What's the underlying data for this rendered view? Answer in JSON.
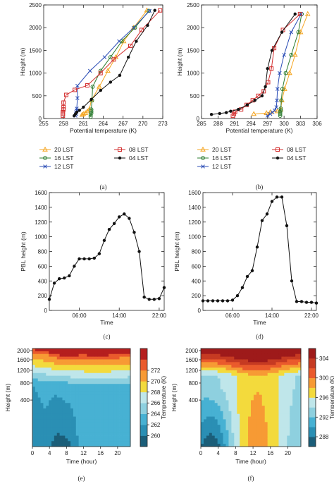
{
  "chart_data": [
    {
      "panel": "a",
      "type": "line",
      "xlabel": "Potential temperature (K)",
      "ylabel": "Height (m)",
      "xlim": [
        255,
        273
      ],
      "ylim": [
        0,
        2500
      ],
      "xticks": [
        "255",
        "258",
        "261",
        "264",
        "267",
        "270",
        "273"
      ],
      "yticks": [
        "0",
        "500",
        "1000",
        "1500",
        "2000",
        "2500"
      ],
      "panel_label": "(a)",
      "grid": false,
      "legend_position": "below",
      "series": [
        {
          "name": "20 LST",
          "color": "#f5a623",
          "marker": "triangle",
          "x": [
            260.8,
            261.0,
            261.3,
            261.6,
            261.9,
            262.2,
            263.4,
            264.7,
            265.9,
            267.1,
            268.6,
            270.6
          ],
          "y": [
            80,
            100,
            120,
            160,
            200,
            400,
            700,
            1050,
            1350,
            1700,
            2000,
            2380
          ]
        },
        {
          "name": "16 LST",
          "color": "#2e7d32",
          "marker": "circle",
          "x": [
            262.1,
            262.1,
            262.2,
            262.2,
            262.2,
            262.3,
            262.4,
            263.6,
            265.1,
            266.8,
            268.8,
            270.9
          ],
          "y": [
            40,
            80,
            120,
            160,
            200,
            400,
            700,
            1050,
            1350,
            1700,
            2000,
            2370
          ]
        },
        {
          "name": "12 LST",
          "color": "#2b4db6",
          "marker": "x",
          "x": [
            259.8,
            259.9,
            259.9,
            260.0,
            260.0,
            260.1,
            260.1,
            262.0,
            264.2,
            266.4,
            268.6,
            271.0
          ],
          "y": [
            60,
            100,
            140,
            180,
            220,
            450,
            720,
            1050,
            1350,
            1700,
            2000,
            2370
          ]
        },
        {
          "name": "08 LST",
          "color": "#d32f2f",
          "marker": "square",
          "x": [
            257.9,
            257.9,
            257.9,
            258.0,
            258.0,
            258.0,
            258.4,
            259.7,
            261.6,
            263.6,
            265.6,
            268.1,
            269.8,
            272.6
          ],
          "y": [
            60,
            100,
            140,
            200,
            250,
            350,
            520,
            630,
            730,
            1000,
            1300,
            1600,
            1950,
            2380
          ]
        },
        {
          "name": "04 LST",
          "color": "#111111",
          "marker": "circle-filled",
          "x": [
            259.6,
            259.8,
            260.0,
            260.4,
            261.0,
            262.2,
            263.6,
            265.1,
            266.5,
            267.8,
            269.0,
            270.7,
            271.8
          ],
          "y": [
            60,
            100,
            140,
            180,
            250,
            420,
            620,
            800,
            950,
            1350,
            1700,
            2050,
            2380
          ]
        }
      ]
    },
    {
      "panel": "b",
      "type": "line",
      "xlabel": "Potential temperature (K)",
      "ylabel": "Height (m)",
      "xlim": [
        285,
        306
      ],
      "ylim": [
        0,
        2500
      ],
      "xticks": [
        "285",
        "288",
        "291",
        "294",
        "297",
        "300",
        "303",
        "306"
      ],
      "yticks": [
        "0",
        "500",
        "1000",
        "1500",
        "2000",
        "2500"
      ],
      "panel_label": "(b)",
      "grid": false,
      "legend_position": "below",
      "series": [
        {
          "name": "20 LST",
          "color": "#f5a623",
          "marker": "triangle",
          "x": [
            294.5,
            296.8,
            297.5,
            298.8,
            299.4,
            299.6,
            300.1,
            301.0,
            302.0,
            303.0,
            304.3
          ],
          "y": [
            100,
            120,
            140,
            160,
            200,
            400,
            650,
            1000,
            1400,
            1900,
            2300
          ]
        },
        {
          "name": "16 LST",
          "color": "#2e7d32",
          "marker": "circle",
          "x": [
            299.3,
            299.3,
            299.3,
            299.4,
            299.4,
            299.5,
            299.7,
            300.3,
            301.3,
            302.6,
            303.2
          ],
          "y": [
            60,
            100,
            140,
            180,
            220,
            400,
            650,
            1000,
            1400,
            1900,
            2300
          ]
        },
        {
          "name": "12 LST",
          "color": "#2b4db6",
          "marker": "x",
          "x": [
            297.0,
            297.5,
            297.9,
            298.3,
            298.6,
            298.7,
            298.8,
            299.2,
            300.0,
            301.3,
            303.1
          ],
          "y": [
            60,
            100,
            140,
            180,
            250,
            400,
            650,
            1000,
            1400,
            1900,
            2300
          ]
        },
        {
          "name": "08 LST",
          "color": "#d32f2f",
          "marker": "square",
          "x": [
            290.7,
            290.9,
            291.1,
            292.2,
            293.2,
            294.3,
            295.3,
            296.3,
            297.1,
            297.7,
            298.2,
            299.8,
            302.9
          ],
          "y": [
            60,
            100,
            150,
            200,
            300,
            400,
            500,
            600,
            800,
            1100,
            1550,
            1950,
            2300
          ]
        },
        {
          "name": "04 LST",
          "color": "#111111",
          "marker": "circle-filled",
          "x": [
            286.8,
            288.3,
            289.5,
            290.3,
            291.7,
            293.3,
            294.7,
            296.0,
            296.6,
            297.0,
            297.8,
            299.6,
            302.0
          ],
          "y": [
            90,
            110,
            130,
            160,
            200,
            300,
            400,
            500,
            700,
            1100,
            1500,
            1900,
            2300
          ]
        }
      ]
    },
    {
      "panel": "c",
      "type": "line",
      "xlabel": "Time",
      "ylabel": "PBL height (m)",
      "xlim": [
        0,
        23
      ],
      "ylim": [
        0,
        1600
      ],
      "xticks": [
        "06:00",
        "14:00",
        "22:00"
      ],
      "xtick_hours": [
        6,
        14,
        22
      ],
      "yticks": [
        "0",
        "200",
        "400",
        "600",
        "800",
        "1000",
        "1200",
        "1400",
        "1600"
      ],
      "panel_label": "(c)",
      "grid": false,
      "series": [
        {
          "color": "#111111",
          "x": [
            0,
            1,
            2,
            3,
            4,
            5,
            6,
            7,
            8,
            9,
            10,
            11,
            12,
            13,
            14,
            15,
            16,
            17,
            18,
            19,
            20,
            21,
            22,
            23
          ],
          "y": [
            150,
            370,
            430,
            440,
            470,
            600,
            700,
            700,
            700,
            710,
            770,
            950,
            1100,
            1180,
            1270,
            1310,
            1250,
            1060,
            800,
            180,
            150,
            150,
            160,
            310
          ]
        }
      ]
    },
    {
      "panel": "d",
      "type": "line",
      "xlabel": "Time",
      "ylabel": "PBL height (m)",
      "xlim": [
        0,
        23
      ],
      "ylim": [
        0,
        1600
      ],
      "xticks": [
        "06:00",
        "14:00",
        "22:00"
      ],
      "xtick_hours": [
        6,
        14,
        22
      ],
      "yticks": [
        "0",
        "200",
        "400",
        "600",
        "800",
        "1000",
        "1200",
        "1400",
        "1600"
      ],
      "panel_label": "(d)",
      "grid": false,
      "series": [
        {
          "color": "#111111",
          "x": [
            0,
            1,
            2,
            3,
            4,
            5,
            6,
            7,
            8,
            9,
            10,
            11,
            12,
            13,
            14,
            15,
            16,
            17,
            18,
            19,
            20,
            21,
            22,
            23
          ],
          "y": [
            130,
            130,
            130,
            130,
            130,
            130,
            140,
            200,
            310,
            460,
            540,
            860,
            1220,
            1310,
            1480,
            1540,
            1540,
            1150,
            400,
            120,
            120,
            110,
            110,
            100
          ]
        }
      ]
    },
    {
      "panel": "e",
      "type": "heatmap",
      "subtype": "filled-contour",
      "xlabel": "Time (hour)",
      "ylabel": "Height (m)",
      "xlim": [
        0,
        23
      ],
      "xticks": [
        "0",
        "4",
        "8",
        "12",
        "16",
        "20"
      ],
      "ytick_labels": [
        "400",
        "800",
        "1200",
        "1600",
        "2000"
      ],
      "ytick_values": [
        400,
        800,
        1200,
        1600,
        2000
      ],
      "colorbar_label": "Temperature (K)",
      "colorbar_ticks": [
        "260",
        "262",
        "264",
        "266",
        "268",
        "270",
        "272"
      ],
      "levels": [
        259,
        260,
        262,
        264,
        266,
        268,
        270,
        272,
        273
      ],
      "colors": [
        "#1b5e79",
        "#2a8fb4",
        "#47b1d3",
        "#8ed0df",
        "#bfe6ea",
        "#f3da3c",
        "#f79a34",
        "#ea5a2c",
        "#b51e1e"
      ],
      "panel_label": "(e)"
    },
    {
      "panel": "f",
      "type": "heatmap",
      "subtype": "filled-contour",
      "xlabel": "Time (hour)",
      "ylabel": "Height (m)",
      "xlim": [
        0,
        23
      ],
      "xticks": [
        "0",
        "4",
        "8",
        "12",
        "16",
        "20"
      ],
      "ytick_labels": [
        "400",
        "800",
        "1200",
        "1600",
        "2000"
      ],
      "ytick_values": [
        400,
        800,
        1200,
        1600,
        2000
      ],
      "colorbar_label": "Temperature (K)",
      "colorbar_ticks": [
        "288",
        "292",
        "296",
        "300",
        "304"
      ],
      "levels": [
        286,
        288,
        290,
        292,
        294,
        296,
        298,
        300,
        302,
        304,
        306
      ],
      "colors": [
        "#1b5e79",
        "#2a8fb4",
        "#47b1d3",
        "#8ed0df",
        "#bfe6ea",
        "#f3da3c",
        "#f79a34",
        "#ea5a2c",
        "#c63a22",
        "#9e1a1a"
      ],
      "panel_label": "(f)"
    }
  ]
}
